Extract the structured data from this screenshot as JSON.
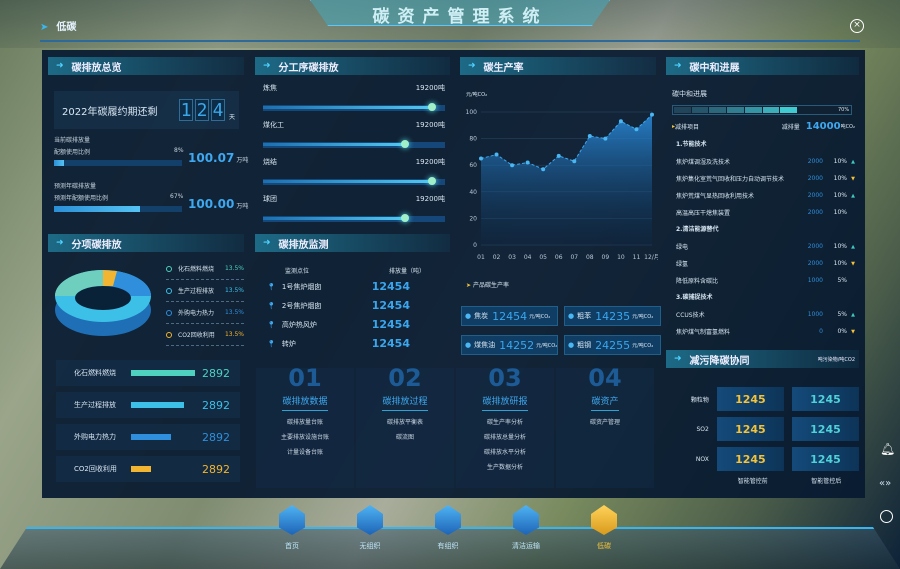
{
  "header": {
    "title": "碳资产管理系统",
    "page": "低碳",
    "close_icon": "close-circle-icon"
  },
  "overview": {
    "title": "碳排放总览",
    "countdown_label": "2022年碳履约期还剩",
    "countdown_digits": [
      "1",
      "2",
      "4"
    ],
    "countdown_unit": "天",
    "current": {
      "label1": "当前碳排放量",
      "label2": "配额使用比例",
      "percent": 8,
      "percent_text": "8%",
      "value": "100.07",
      "unit": "万吨"
    },
    "forecast": {
      "label1": "预测年碳排放量",
      "label2": "预测年配额使用比例",
      "percent": 67,
      "percent_text": "67%",
      "value": "100.00",
      "unit": "万吨"
    }
  },
  "process": {
    "title": "分工序碳排放",
    "items": [
      {
        "name": "炼焦",
        "value": "19200吨",
        "level": 0.93
      },
      {
        "name": "煤化工",
        "value": "19200吨",
        "level": 0.78
      },
      {
        "name": "烧结",
        "value": "19200吨",
        "level": 0.93
      },
      {
        "name": "球团",
        "value": "19200吨",
        "level": 0.78
      }
    ]
  },
  "rate": {
    "title": "碳生产率",
    "unit": "元/吨CO₂",
    "chart_data": {
      "type": "area",
      "x": [
        "01",
        "02",
        "03",
        "04",
        "05",
        "06",
        "07",
        "08",
        "09",
        "10",
        "11",
        "12/月"
      ],
      "values": [
        65,
        68,
        60,
        62,
        57,
        67,
        63,
        82,
        80,
        93,
        87,
        98
      ],
      "ylim": [
        0,
        100
      ],
      "yticks": [
        0,
        20,
        40,
        60,
        80,
        100
      ],
      "color": "#3ea8f0",
      "grid": true
    },
    "product_title": "产品碳生产率",
    "products": [
      {
        "name": "焦炭",
        "value": "12454",
        "unit": "元/吨CO₂"
      },
      {
        "name": "粗苯",
        "value": "14235",
        "unit": "元/吨CO₂"
      },
      {
        "name": "煤焦油",
        "value": "14252",
        "unit": "元/吨CO₂"
      },
      {
        "name": "粗钢",
        "value": "24255",
        "unit": "元/吨CO₂"
      }
    ]
  },
  "neutral": {
    "title": "碳中和进展",
    "progress_label": "碳中和进展",
    "progress": 70,
    "progress_text": "70%",
    "project_label": "减排项目",
    "reduce_label": "减排量",
    "reduce_value": "14000",
    "reduce_unit": "吨CO₂",
    "groups": [
      {
        "name": "1.节能技术",
        "rows": [
          {
            "n": "焦炉煤调湿及洗技术",
            "a": "2000",
            "p": "10%",
            "t": "up"
          },
          {
            "n": "焦炉集化室荒气回收和压力自动调节技术",
            "a": "2000",
            "p": "10%",
            "t": "down"
          },
          {
            "n": "焦炉荒煤气显热回收利用技术",
            "a": "2000",
            "p": "10%",
            "t": "up"
          },
          {
            "n": "高温高压干熄焦装置",
            "a": "2000",
            "p": "10%",
            "t": ""
          }
        ]
      },
      {
        "name": "2.清洁能源替代",
        "rows": [
          {
            "n": "绿电",
            "a": "2000",
            "p": "10%",
            "t": "up"
          },
          {
            "n": "绿氢",
            "a": "2000",
            "p": "10%",
            "t": "down"
          },
          {
            "n": "降低原料含碳比",
            "a": "1000",
            "p": "5%",
            "t": ""
          }
        ]
      },
      {
        "name": "3.碳捕捉技术",
        "rows": [
          {
            "n": "CCUS技术",
            "a": "1000",
            "p": "5%",
            "t": "up"
          },
          {
            "n": "焦炉煤气制富氢燃料",
            "a": "0",
            "p": "0%",
            "t": "down"
          }
        ]
      }
    ]
  },
  "breakdown": {
    "title": "分项碳排放",
    "legend": [
      {
        "name": "化石燃料燃烧",
        "pct": "13.5%",
        "color": "#4fd1c0"
      },
      {
        "name": "生产过程排放",
        "pct": "13.5%",
        "color": "#3cc0e8"
      },
      {
        "name": "外购电力热力",
        "pct": "13.5%",
        "color": "#2f8fdc"
      },
      {
        "name": "CO2回收利用",
        "pct": "13.5%",
        "color": "#f2b531"
      }
    ],
    "bars": [
      {
        "name": "化石燃料燃烧",
        "value": "2892",
        "level": 0.9,
        "color": "#4fd1c0"
      },
      {
        "name": "生产过程排放",
        "value": "2892",
        "level": 0.74,
        "color": "#3cc0e8"
      },
      {
        "name": "外购电力热力",
        "value": "2892",
        "level": 0.57,
        "color": "#2f8fdc"
      },
      {
        "name": "CO2回收利用",
        "value": "2892",
        "level": 0.28,
        "color": "#f2b531"
      }
    ]
  },
  "monitor": {
    "title": "碳排放监测",
    "col1": "监测点位",
    "col2": "排放量（吨）",
    "rows": [
      {
        "name": "1号焦炉烟囱",
        "value": "12454"
      },
      {
        "name": "2号焦炉烟囱",
        "value": "12454"
      },
      {
        "name": "高炉热风炉",
        "value": "12454"
      },
      {
        "name": "转炉",
        "value": "12454"
      }
    ]
  },
  "modules": [
    {
      "no": "01",
      "title": "碳排放数据",
      "items": [
        "碳排放量台账",
        "主要排放设施台账",
        "计量设备台账"
      ]
    },
    {
      "no": "02",
      "title": "碳排放过程",
      "items": [
        "碳排放平衡表",
        "碳流图"
      ]
    },
    {
      "no": "03",
      "title": "碳排放研报",
      "items": [
        "碳生产率分析",
        "碳排放总量分析",
        "碳排放水平分析",
        "生产数据分析"
      ]
    },
    {
      "no": "04",
      "title": "碳资产",
      "items": [
        "碳资产管理"
      ]
    }
  ],
  "synergy": {
    "title": "减污降碳协同",
    "unit": "吨污染物/吨CO2",
    "rows": [
      {
        "name": "颗粒物",
        "a": "1245",
        "b": "1245"
      },
      {
        "name": "SO2",
        "a": "1245",
        "b": "1245"
      },
      {
        "name": "NOX",
        "a": "1245",
        "b": "1245"
      }
    ],
    "col_a": "智能管控前",
    "col_b": "智能管控后"
  },
  "nav": [
    {
      "label": "首页",
      "active": false
    },
    {
      "label": "无组织",
      "active": false
    },
    {
      "label": "有组织",
      "active": false
    },
    {
      "label": "清洁运输",
      "active": false
    },
    {
      "label": "低碳",
      "active": true
    }
  ],
  "colors": {
    "accent": "#3ea8f0",
    "gold": "#f2c23a",
    "teal": "#4fd1c0"
  }
}
